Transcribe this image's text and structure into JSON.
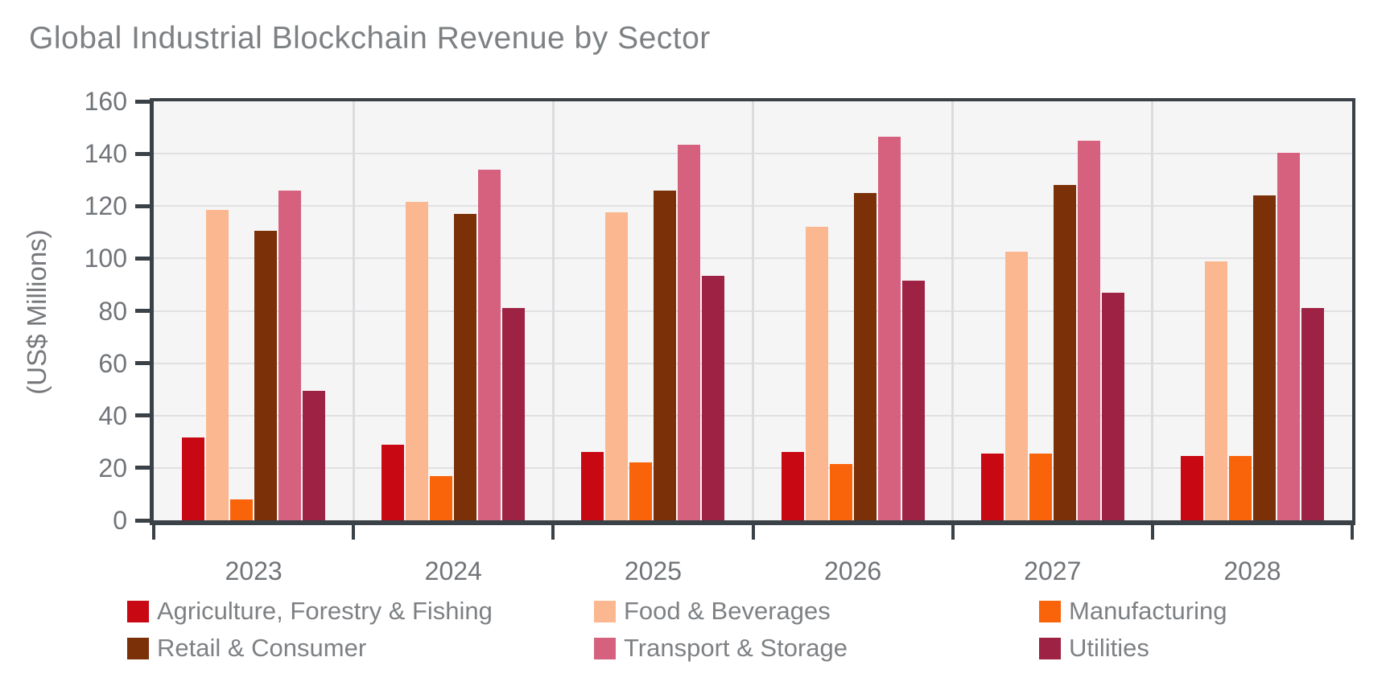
{
  "title": "Global Industrial Blockchain Revenue by Sector",
  "colors": {
    "axis": "#3a4147",
    "grid_h": "#e0e0e2",
    "grid_v": "#dcdcde",
    "plot_background": "#f6f5f6",
    "title_text": "#7d8184",
    "tick_text": "#717478",
    "legend_text": "#7e8184"
  },
  "chart_data": {
    "type": "bar",
    "title": "Global Industrial Blockchain Revenue by Sector",
    "xlabel": "",
    "ylabel": "(US$ Millions)",
    "ylim": [
      0,
      160
    ],
    "y_ticks": [
      0,
      20,
      40,
      60,
      80,
      100,
      120,
      140,
      160
    ],
    "grid": true,
    "legend_position": "bottom",
    "categories": [
      "2023",
      "2024",
      "2025",
      "2026",
      "2027",
      "2028"
    ],
    "series": [
      {
        "name": "Agriculture, Forestry & Fishing",
        "color": "#c80812",
        "values": [
          31.5,
          29,
          26,
          26,
          25.5,
          24.5
        ]
      },
      {
        "name": "Food & Beverages",
        "color": "#fbb890",
        "values": [
          118.5,
          121.5,
          117.5,
          112,
          102.5,
          99
        ]
      },
      {
        "name": "Manufacturing",
        "color": "#f9640a",
        "values": [
          8,
          17,
          22,
          21.5,
          25.5,
          24.5
        ]
      },
      {
        "name": "Retail & Consumer",
        "color": "#7b3008",
        "values": [
          110.5,
          117,
          126,
          125,
          128,
          124
        ]
      },
      {
        "name": "Transport & Storage",
        "color": "#d6617f",
        "values": [
          126,
          134,
          143.5,
          146.5,
          145,
          140.5
        ]
      },
      {
        "name": "Utilities",
        "color": "#9e2244",
        "values": [
          49.5,
          81,
          93.5,
          91.5,
          87,
          81
        ]
      }
    ]
  }
}
